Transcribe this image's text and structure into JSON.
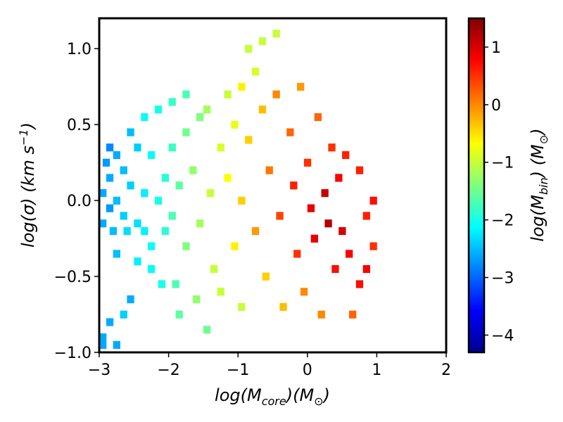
{
  "chart_data": {
    "type": "heatmap",
    "title": "",
    "xlabel": {
      "main": "log(M",
      "sub": "core",
      "unit_open": ")(M",
      "unit_sub": "⊙",
      "close": ")"
    },
    "ylabel": {
      "main": "log(σ) (km s",
      "sup": "−1",
      "close": ")"
    },
    "colorbar_label": {
      "main": "log(M",
      "sub": "bin",
      "unit_open": ") (M",
      "unit_sub": "⊙",
      "close": ")"
    },
    "xlim": [
      -3,
      2
    ],
    "ylim": [
      -1.0,
      1.2
    ],
    "clim": [
      -4.3,
      1.5
    ],
    "colormap": "jet",
    "x_ticks": [
      -3,
      -2,
      -1,
      0,
      1,
      2
    ],
    "x_tick_labels": [
      "−3",
      "−2",
      "−1",
      "0",
      "1",
      "2"
    ],
    "y_ticks": [
      -1.0,
      -0.5,
      0.0,
      0.5,
      1.0
    ],
    "y_tick_labels": [
      "−1.0",
      "−0.5",
      "0.0",
      "0.5",
      "1.0"
    ],
    "colorbar_ticks": [
      -4,
      -3,
      -2,
      -1,
      0,
      1
    ],
    "colorbar_tick_labels": [
      "−4",
      "−3",
      "−2",
      "−1",
      "0",
      "1"
    ],
    "bin_size": {
      "dx": 0.1,
      "dy": 0.05
    },
    "cells": [
      [
        -2.95,
        -0.95,
        -2.6
      ],
      [
        -2.95,
        -0.9,
        -2.6
      ],
      [
        -2.85,
        -0.8,
        -2.6
      ],
      [
        -2.75,
        -0.95,
        -2.6
      ],
      [
        -2.65,
        -0.75,
        -2.4
      ],
      [
        -2.95,
        -0.15,
        -2.6
      ],
      [
        -2.95,
        0.05,
        -2.6
      ],
      [
        -2.9,
        0.25,
        -2.7
      ],
      [
        -2.85,
        0.35,
        -2.8
      ],
      [
        -2.85,
        0.15,
        -2.6
      ],
      [
        -2.85,
        -0.05,
        -2.7
      ],
      [
        -2.8,
        -0.2,
        -2.5
      ],
      [
        -2.75,
        0.0,
        -2.5
      ],
      [
        -2.75,
        -0.35,
        -2.5
      ],
      [
        -2.75,
        0.3,
        -2.6
      ],
      [
        -2.65,
        0.2,
        -2.5
      ],
      [
        -2.65,
        -0.1,
        -2.4
      ],
      [
        -2.6,
        -0.2,
        -2.3
      ],
      [
        -2.55,
        0.1,
        -2.4
      ],
      [
        -2.55,
        0.45,
        -2.5
      ],
      [
        -2.55,
        -0.65,
        -2.6
      ],
      [
        -2.45,
        -0.15,
        -2.3
      ],
      [
        -2.45,
        0.35,
        -2.4
      ],
      [
        -2.45,
        -0.4,
        -2.2
      ],
      [
        -2.35,
        -0.2,
        -2.2
      ],
      [
        -2.35,
        0.05,
        -2.2
      ],
      [
        -2.35,
        0.55,
        -2.1
      ],
      [
        -2.25,
        -0.3,
        -2.1
      ],
      [
        -2.25,
        0.3,
        -2.1
      ],
      [
        -2.25,
        -0.45,
        -2.1
      ],
      [
        -2.15,
        0.0,
        -2.0
      ],
      [
        -2.15,
        0.6,
        -2.0
      ],
      [
        -2.1,
        -0.55,
        -2.0
      ],
      [
        -2.05,
        0.15,
        -1.9
      ],
      [
        -2.05,
        -0.2,
        -1.9
      ],
      [
        -1.95,
        0.65,
        -1.8
      ],
      [
        -1.95,
        -0.1,
        -1.7
      ],
      [
        -1.95,
        0.35,
        -1.8
      ],
      [
        -1.9,
        -0.55,
        -1.7
      ],
      [
        -1.85,
        0.1,
        -1.6
      ],
      [
        -1.85,
        -0.75,
        -1.6
      ],
      [
        -1.75,
        0.7,
        -1.7
      ],
      [
        -1.75,
        0.45,
        -1.5
      ],
      [
        -1.75,
        -0.3,
        -1.4
      ],
      [
        -1.65,
        0.2,
        -1.3
      ],
      [
        -1.6,
        -0.65,
        -1.3
      ],
      [
        -1.55,
        0.55,
        -1.4
      ],
      [
        -1.55,
        -0.15,
        -1.2
      ],
      [
        -1.45,
        0.6,
        -1.2
      ],
      [
        -1.45,
        -0.85,
        -1.5
      ],
      [
        -1.4,
        0.05,
        -1.0
      ],
      [
        -1.35,
        -0.45,
        -1.0
      ],
      [
        -1.25,
        0.35,
        -0.9
      ],
      [
        -1.25,
        -0.6,
        -1.0
      ],
      [
        -1.15,
        0.7,
        -1.0
      ],
      [
        -1.15,
        0.15,
        -0.7
      ],
      [
        -1.05,
        -0.3,
        -0.6
      ],
      [
        -1.05,
        0.5,
        -0.8
      ],
      [
        -0.95,
        0.75,
        -0.6
      ],
      [
        -0.95,
        0.0,
        -0.4
      ],
      [
        -0.95,
        -0.7,
        -1.0
      ],
      [
        -0.85,
        1.0,
        -1.0
      ],
      [
        -0.85,
        0.4,
        -0.4
      ],
      [
        -0.75,
        0.85,
        -0.9
      ],
      [
        -0.75,
        -0.2,
        -0.1
      ],
      [
        -0.65,
        1.05,
        -1.0
      ],
      [
        -0.65,
        0.6,
        -0.3
      ],
      [
        -0.6,
        -0.5,
        -0.4
      ],
      [
        -0.55,
        0.2,
        0.1
      ],
      [
        -0.45,
        1.1,
        -1.0
      ],
      [
        -0.45,
        0.7,
        0.0
      ],
      [
        -0.4,
        -0.1,
        0.4
      ],
      [
        -0.35,
        -0.7,
        -0.3
      ],
      [
        -0.25,
        0.45,
        0.2
      ],
      [
        -0.2,
        0.1,
        0.6
      ],
      [
        -0.15,
        -0.35,
        0.5
      ],
      [
        -0.1,
        0.75,
        -0.1
      ],
      [
        -0.05,
        -0.6,
        0.0
      ],
      [
        0.0,
        0.25,
        0.5
      ],
      [
        0.05,
        -0.05,
        0.9
      ],
      [
        0.1,
        -0.25,
        0.9
      ],
      [
        0.15,
        0.55,
        0.2
      ],
      [
        0.2,
        -0.75,
        0.0
      ],
      [
        0.25,
        0.05,
        1.1
      ],
      [
        0.3,
        -0.15,
        1.2
      ],
      [
        0.35,
        0.35,
        0.5
      ],
      [
        0.4,
        -0.45,
        0.7
      ],
      [
        0.45,
        0.15,
        0.8
      ],
      [
        0.5,
        -0.2,
        1.0
      ],
      [
        0.55,
        0.3,
        0.6
      ],
      [
        0.6,
        -0.35,
        0.8
      ],
      [
        0.65,
        -0.75,
        0.2
      ],
      [
        0.75,
        0.2,
        0.6
      ],
      [
        0.75,
        -0.55,
        0.7
      ],
      [
        0.85,
        -0.1,
        0.6
      ],
      [
        0.85,
        -0.45,
        0.8
      ],
      [
        0.95,
        -0.3,
        0.5
      ],
      [
        0.95,
        0.0,
        0.7
      ]
    ]
  }
}
